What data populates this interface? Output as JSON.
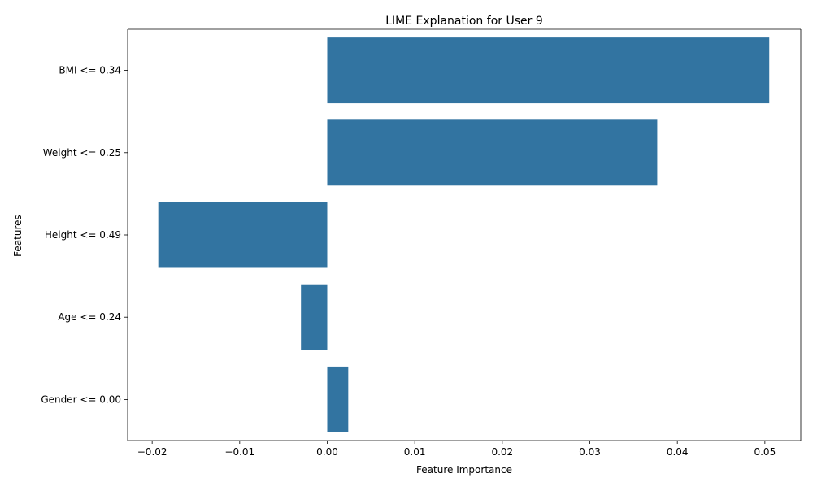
{
  "chart_data": {
    "type": "bar",
    "orientation": "horizontal",
    "title": "LIME Explanation for User 9",
    "xlabel": "Feature Importance",
    "ylabel": "Features",
    "categories": [
      "BMI <= 0.34",
      "Weight <= 0.25",
      "Height <= 0.49",
      "Age <= 0.24",
      "Gender <= 0.00"
    ],
    "values": [
      0.0505,
      0.0377,
      -0.0193,
      -0.003,
      0.0024
    ],
    "xlim": [
      -0.0228,
      0.0541
    ],
    "xticks": [
      -0.02,
      -0.01,
      0.0,
      0.01,
      0.02,
      0.03,
      0.04,
      0.05
    ],
    "xtick_labels": [
      "−0.02",
      "−0.01",
      "0.00",
      "0.01",
      "0.02",
      "0.03",
      "0.04",
      "0.05"
    ],
    "bar_color": "#3274a1",
    "grid": false,
    "legend": "none"
  }
}
